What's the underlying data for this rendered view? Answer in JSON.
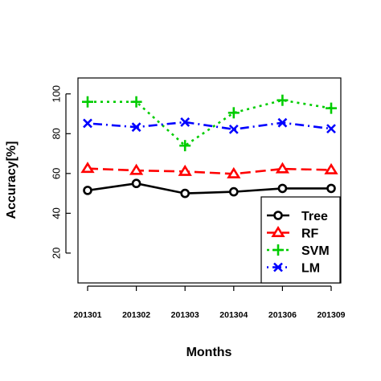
{
  "chart_data": {
    "type": "line",
    "xlabel": "Months",
    "ylabel": "Accuracy[%]",
    "categories": [
      "201301",
      "201302",
      "201303",
      "201304",
      "201306",
      "201309"
    ],
    "ylim": [
      5,
      108
    ],
    "y_ticks": [
      20,
      40,
      60,
      80,
      100
    ],
    "grid": false,
    "legend_position": "bottom-right",
    "series": [
      {
        "name": "Tree",
        "color": "#000000",
        "line_style": "solid",
        "marker": "circle",
        "values": [
          51.5,
          55,
          50,
          50.8,
          52.5,
          52.5
        ]
      },
      {
        "name": "RF",
        "color": "#ff0000",
        "line_style": "dashed",
        "marker": "triangle",
        "values": [
          62.5,
          61.5,
          61,
          59.8,
          62.3,
          61.8
        ]
      },
      {
        "name": "SVM",
        "color": "#00cc00",
        "line_style": "dotted",
        "marker": "plus",
        "values": [
          96,
          96,
          74,
          90.5,
          96.8,
          92.8
        ]
      },
      {
        "name": "LM",
        "color": "#0000ff",
        "line_style": "dotdash",
        "marker": "cross",
        "values": [
          85.2,
          83.3,
          85.8,
          82.2,
          85.5,
          82.5
        ]
      }
    ]
  }
}
